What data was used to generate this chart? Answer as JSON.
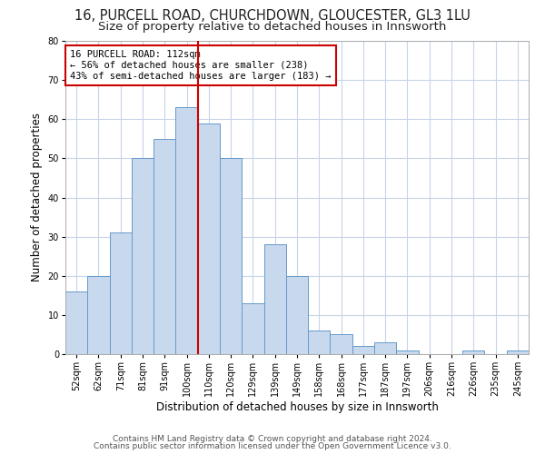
{
  "title1": "16, PURCELL ROAD, CHURCHDOWN, GLOUCESTER, GL3 1LU",
  "title2": "Size of property relative to detached houses in Innsworth",
  "xlabel": "Distribution of detached houses by size in Innsworth",
  "ylabel": "Number of detached properties",
  "categories": [
    "52sqm",
    "62sqm",
    "71sqm",
    "81sqm",
    "91sqm",
    "100sqm",
    "110sqm",
    "120sqm",
    "129sqm",
    "139sqm",
    "149sqm",
    "158sqm",
    "168sqm",
    "177sqm",
    "187sqm",
    "197sqm",
    "206sqm",
    "216sqm",
    "226sqm",
    "235sqm",
    "245sqm"
  ],
  "values": [
    16,
    20,
    31,
    50,
    55,
    63,
    59,
    50,
    13,
    28,
    20,
    6,
    5,
    2,
    3,
    1,
    0,
    0,
    1,
    0,
    1
  ],
  "bar_color": "#c8d9ed",
  "bar_edge_color": "#6699cc",
  "reference_line_color": "#cc0000",
  "annotation_text": "16 PURCELL ROAD: 112sqm\n← 56% of detached houses are smaller (238)\n43% of semi-detached houses are larger (183) →",
  "annotation_box_color": "#cc0000",
  "ylim": [
    0,
    80
  ],
  "yticks": [
    0,
    10,
    20,
    30,
    40,
    50,
    60,
    70,
    80
  ],
  "footer1": "Contains HM Land Registry data © Crown copyright and database right 2024.",
  "footer2": "Contains public sector information licensed under the Open Government Licence v3.0.",
  "background_color": "#ffffff",
  "grid_color": "#c8d4e8",
  "title1_fontsize": 10.5,
  "title2_fontsize": 9.5,
  "axis_label_fontsize": 8.5,
  "tick_fontsize": 7,
  "annotation_fontsize": 7.5,
  "footer_fontsize": 6.5
}
